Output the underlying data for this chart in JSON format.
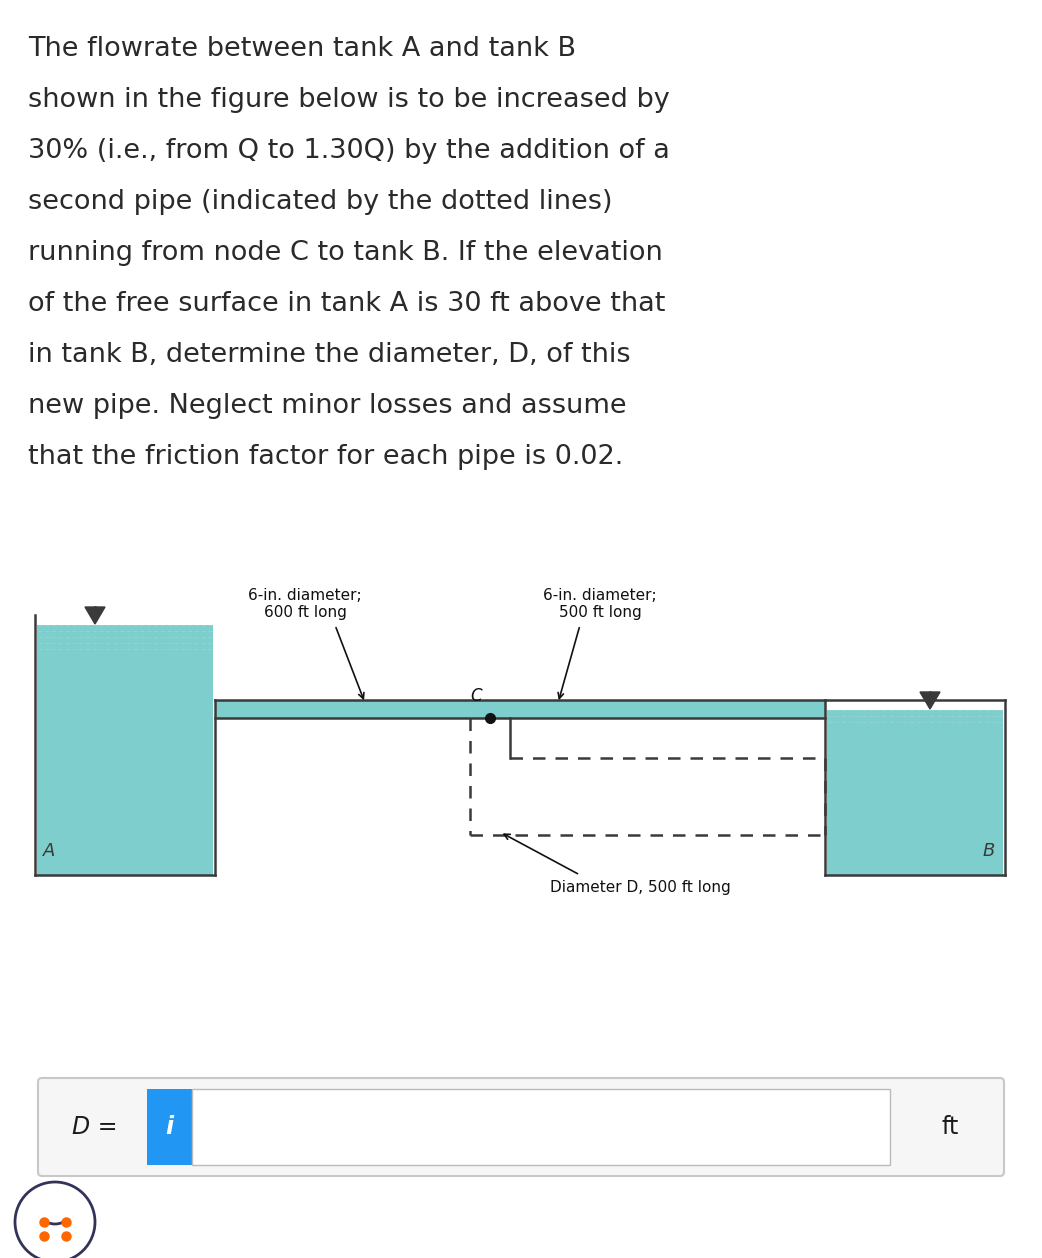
{
  "bg_color": "#ffffff",
  "text_color": "#2a2a2a",
  "paragraph_lines": [
    "The flowrate between tank A and tank B",
    "shown in the figure below is to be increased by",
    "30% (i.e., from Q to 1.30Q) by the addition of a",
    "second pipe (indicated by the dotted lines)",
    "running from node C to tank B. If the elevation",
    "of the free surface in tank A is 30 ft above that",
    "in tank B, determine the diameter, D, of this",
    "new pipe. Neglect minor losses and assume",
    "that the friction factor for each pipe is 0.02."
  ],
  "water_color": "#7ecece",
  "water_surface_color": "#5ab8b8",
  "wall_color": "#3a3a3a",
  "tank_A_label": "A",
  "tank_B_label": "B",
  "node_label": "C",
  "pipe1_label_line1": "6-in. diameter;",
  "pipe1_label_line2": "600 ft long",
  "pipe2_label_line1": "6-in. diameter;",
  "pipe2_label_line2": "500 ft long",
  "new_pipe_label": "Diameter D, 500 ft long",
  "answer_prefix": "D =",
  "answer_unit": "ft",
  "info_btn_color": "#2196F3",
  "font_size_para": 19.5,
  "font_size_label": 11,
  "font_size_diagram_label": 11,
  "font_size_answer": 17
}
